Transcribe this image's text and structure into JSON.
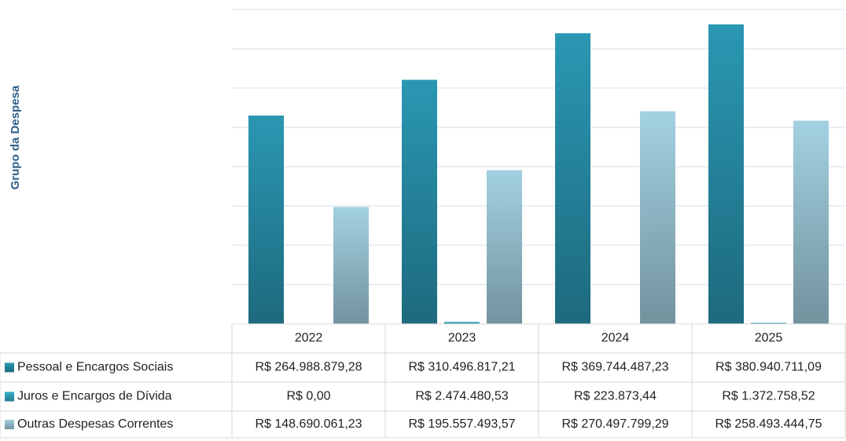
{
  "chart_data": {
    "type": "bar",
    "y_label": "Grupo da Despesa",
    "categories": [
      "2022",
      "2023",
      "2024",
      "2025"
    ],
    "series": [
      {
        "name": "Pessoal e Encargos Sociais",
        "color": "#2a97b3",
        "values": [
          264988879.28,
          310496817.21,
          369744487.23,
          380940711.09
        ],
        "value_labels": [
          "R$ 264.988.879,28",
          "R$ 310.496.817,21",
          "R$ 369.744.487,23",
          "R$ 380.940.711,09"
        ]
      },
      {
        "name": "Juros e Encargos de Dívida",
        "color": "#35b0cc",
        "values": [
          0,
          2474480.53,
          223873.44,
          1372758.52
        ],
        "value_labels": [
          "R$ 0,00",
          "R$ 2.474.480,53",
          "R$ 223.873,44",
          "R$ 1.372.758,52"
        ]
      },
      {
        "name": "Outras Despesas Correntes",
        "color": "#a3d1e1",
        "values": [
          148690061.23,
          195557493.57,
          270497799.29,
          258493444.75
        ],
        "value_labels": [
          "R$ 148.690.061,23",
          "R$ 195.557.493,57",
          "R$ 270.497.799,29",
          "R$ 258.493.444,75"
        ]
      }
    ],
    "ylim": [
      0,
      400000000
    ],
    "yticks": [
      0,
      50000000,
      100000000,
      150000000,
      200000000,
      250000000,
      300000000,
      350000000,
      400000000
    ],
    "grid": true
  }
}
